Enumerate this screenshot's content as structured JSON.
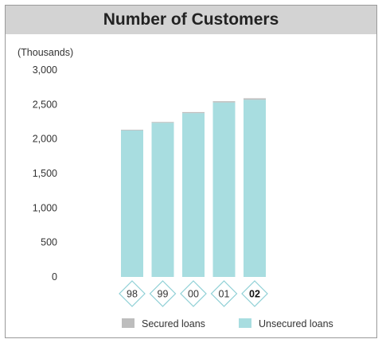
{
  "chart_data": {
    "type": "bar",
    "title": "Number of Customers",
    "unit_label": "(Thousands)",
    "categories": [
      "98",
      "99",
      "00",
      "01",
      "02"
    ],
    "highlight_category": "02",
    "ylim": [
      0,
      3000
    ],
    "yticks": [
      "3,000",
      "2,500",
      "2,000",
      "1,500",
      "1,000",
      "500",
      "0"
    ],
    "ytick_values": [
      3000,
      2500,
      2000,
      1500,
      1000,
      500,
      0
    ],
    "stacked": true,
    "series": [
      {
        "name": "Unsecured loans",
        "values": [
          2125,
          2235,
          2375,
          2530,
          2570
        ],
        "color": "#a8dde0"
      },
      {
        "name": "Secured loans",
        "values": [
          10,
          12,
          15,
          18,
          20
        ],
        "color": "#bdbdbd"
      }
    ],
    "legend_position": "bottom",
    "grid": false
  }
}
